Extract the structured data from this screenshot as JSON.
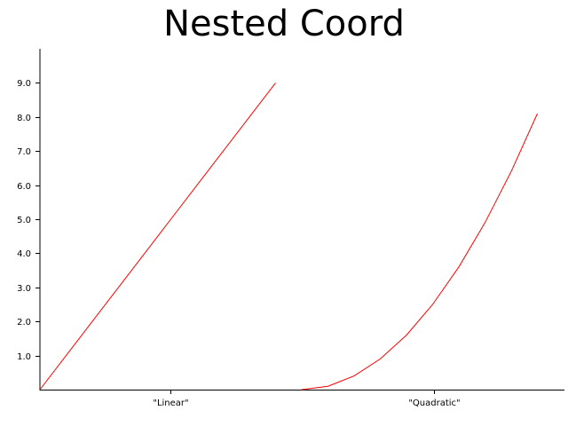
{
  "title": "Nested Coord",
  "chart_data": {
    "type": "line",
    "title": "Nested Coord",
    "xlabel": "",
    "ylabel": "",
    "categories": [
      "\"Linear\"",
      "\"Quadratic\""
    ],
    "ylim": [
      0,
      10
    ],
    "y_ticks": [
      "1.0",
      "2.0",
      "3.0",
      "4.0",
      "5.0",
      "6.0",
      "7.0",
      "8.0",
      "9.0"
    ],
    "grid": false,
    "legend": "none",
    "series": [
      {
        "category": "\"Linear\"",
        "x": [
          0,
          1,
          2,
          3,
          4,
          5,
          6,
          7,
          8,
          9
        ],
        "values": [
          0,
          1,
          2,
          3,
          4,
          5,
          6,
          7,
          8,
          9
        ],
        "color": "#ff0000"
      },
      {
        "category": "\"Quadratic\"",
        "x": [
          0,
          1,
          2,
          3,
          4,
          5,
          6,
          7,
          8,
          9
        ],
        "values": [
          0,
          0.1,
          0.4,
          0.9,
          1.6,
          2.5,
          3.6,
          4.9,
          6.4,
          8.1
        ],
        "color": "#ff0000"
      }
    ]
  }
}
